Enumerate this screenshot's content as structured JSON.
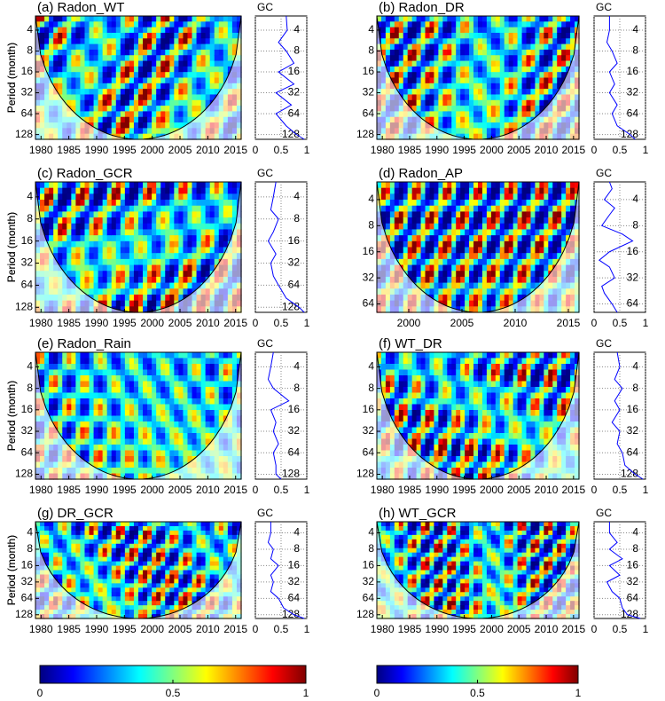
{
  "chart_data": [
    {
      "type": "wavelet",
      "title": "(a) Radon_WT",
      "ylabel": "Period (month)",
      "xlim": [
        1979,
        2016
      ],
      "xticks": [
        1980,
        1985,
        1990,
        1995,
        2000,
        2005,
        2010,
        2015
      ],
      "ylim": [
        2.5,
        150
      ],
      "yticks": [
        4,
        8,
        16,
        32,
        64,
        128
      ],
      "log_scale": true,
      "gc": {
        "title": "GC",
        "xlim": [
          0,
          1
        ],
        "xticks": [
          0,
          0.5,
          1
        ],
        "color": "#0000ff",
        "periods": [
          2.5,
          4,
          6,
          8,
          12,
          16,
          24,
          32,
          48,
          64,
          96,
          128,
          150
        ],
        "values": [
          0.6,
          0.62,
          0.45,
          0.6,
          0.75,
          0.45,
          0.75,
          0.4,
          0.7,
          0.4,
          0.6,
          0.8,
          0.95
        ]
      }
    },
    {
      "type": "wavelet",
      "title": "(b) Radon_DR",
      "ylabel": "Period (month)",
      "xlim": [
        1979,
        2016
      ],
      "xticks": [
        1980,
        1985,
        1990,
        1995,
        2000,
        2005,
        2010,
        2015
      ],
      "ylim": [
        2.5,
        150
      ],
      "yticks": [
        4,
        8,
        16,
        32,
        64,
        128
      ],
      "log_scale": true,
      "gc": {
        "title": "GC",
        "xlim": [
          0,
          1
        ],
        "xticks": [
          0,
          0.5,
          1
        ],
        "color": "#0000ff",
        "periods": [
          2.5,
          4,
          6,
          8,
          12,
          16,
          24,
          32,
          48,
          64,
          96,
          128,
          150
        ],
        "values": [
          0.3,
          0.3,
          0.25,
          0.35,
          0.45,
          0.3,
          0.4,
          0.3,
          0.45,
          0.35,
          0.45,
          0.7,
          0.8
        ]
      }
    },
    {
      "type": "wavelet",
      "title": "(c) Radon_GCR",
      "ylabel": "Period (month)",
      "xlim": [
        1979,
        2016
      ],
      "xticks": [
        1980,
        1985,
        1990,
        1995,
        2000,
        2005,
        2010,
        2015
      ],
      "ylim": [
        2.5,
        150
      ],
      "yticks": [
        4,
        8,
        16,
        32,
        64,
        128
      ],
      "log_scale": true,
      "gc": {
        "title": "GC",
        "xlim": [
          0,
          1
        ],
        "xticks": [
          0,
          0.5,
          1
        ],
        "color": "#0000ff",
        "periods": [
          2.5,
          4,
          6,
          8,
          12,
          16,
          24,
          32,
          48,
          64,
          96,
          128,
          150
        ],
        "values": [
          0.4,
          0.35,
          0.3,
          0.45,
          0.35,
          0.25,
          0.4,
          0.3,
          0.35,
          0.45,
          0.6,
          0.85,
          0.95
        ]
      }
    },
    {
      "type": "wavelet",
      "title": "(d) Radon_AP",
      "ylabel": "Period (month)",
      "xlim": [
        1997,
        2016
      ],
      "xticks": [
        2000,
        2005,
        2010,
        2015
      ],
      "ylim": [
        2.5,
        80
      ],
      "yticks": [
        4,
        8,
        16,
        32,
        64
      ],
      "log_scale": true,
      "gc": {
        "title": "GC",
        "xlim": [
          0,
          1
        ],
        "xticks": [
          0,
          0.5,
          1
        ],
        "color": "#0000ff",
        "periods": [
          2.5,
          3,
          4,
          5,
          6,
          8,
          10,
          12,
          16,
          20,
          24,
          32,
          40,
          48,
          64,
          80
        ],
        "values": [
          0.3,
          0.35,
          0.2,
          0.4,
          0.3,
          0.15,
          0.55,
          0.75,
          0.3,
          0.1,
          0.3,
          0.4,
          0.15,
          0.2,
          0.35,
          0.45
        ]
      }
    },
    {
      "type": "wavelet",
      "title": "(e) Radon_Rain",
      "ylabel": "Period (month)",
      "xlim": [
        1979,
        2016
      ],
      "xticks": [
        1980,
        1985,
        1990,
        1995,
        2000,
        2005,
        2010,
        2015
      ],
      "ylim": [
        2.5,
        150
      ],
      "yticks": [
        4,
        8,
        16,
        32,
        64,
        128
      ],
      "log_scale": true,
      "gc": {
        "title": "GC",
        "xlim": [
          0,
          1
        ],
        "xticks": [
          0,
          0.5,
          1
        ],
        "color": "#0000ff",
        "periods": [
          2.5,
          4,
          6,
          8,
          12,
          16,
          24,
          32,
          48,
          64,
          96,
          128,
          150
        ],
        "values": [
          0.35,
          0.3,
          0.25,
          0.35,
          0.65,
          0.3,
          0.4,
          0.35,
          0.45,
          0.35,
          0.4,
          0.4,
          0.5
        ]
      }
    },
    {
      "type": "wavelet",
      "title": "(f) WT_DR",
      "ylabel": "Period (month)",
      "xlim": [
        1979,
        2016
      ],
      "xticks": [
        1980,
        1985,
        1990,
        1995,
        2000,
        2005,
        2010,
        2015
      ],
      "ylim": [
        2.5,
        150
      ],
      "yticks": [
        4,
        8,
        16,
        32,
        64,
        128
      ],
      "log_scale": true,
      "gc": {
        "title": "GC",
        "xlim": [
          0,
          1
        ],
        "xticks": [
          0,
          0.5,
          1
        ],
        "color": "#0000ff",
        "periods": [
          2.5,
          4,
          6,
          8,
          12,
          16,
          24,
          32,
          48,
          64,
          96,
          128,
          150
        ],
        "values": [
          0.45,
          0.5,
          0.4,
          0.55,
          0.4,
          0.5,
          0.35,
          0.5,
          0.45,
          0.55,
          0.6,
          0.8,
          0.95
        ]
      }
    },
    {
      "type": "wavelet",
      "title": "(g) DR_GCR",
      "ylabel": "Period (month)",
      "xlim": [
        1979,
        2016
      ],
      "xticks": [
        1980,
        1985,
        1990,
        1995,
        2000,
        2005,
        2010,
        2015
      ],
      "ylim": [
        2.5,
        150
      ],
      "yticks": [
        4,
        8,
        16,
        32,
        64,
        128
      ],
      "log_scale": true,
      "gc": {
        "title": "GC",
        "xlim": [
          0,
          1
        ],
        "xticks": [
          0,
          0.5,
          1
        ],
        "color": "#0000ff",
        "periods": [
          2.5,
          4,
          6,
          8,
          12,
          16,
          24,
          32,
          48,
          64,
          96,
          128,
          150
        ],
        "values": [
          0.3,
          0.3,
          0.25,
          0.35,
          0.3,
          0.45,
          0.3,
          0.35,
          0.3,
          0.45,
          0.55,
          0.75,
          0.95
        ]
      }
    },
    {
      "type": "wavelet",
      "title": "(h) WT_GCR",
      "ylabel": "Period (month)",
      "xlim": [
        1979,
        2016
      ],
      "xticks": [
        1980,
        1985,
        1990,
        1995,
        2000,
        2005,
        2010,
        2015
      ],
      "ylim": [
        2.5,
        150
      ],
      "yticks": [
        4,
        8,
        16,
        32,
        64,
        128
      ],
      "log_scale": true,
      "gc": {
        "title": "GC",
        "xlim": [
          0,
          1
        ],
        "xticks": [
          0,
          0.5,
          1
        ],
        "color": "#0000ff",
        "periods": [
          2.5,
          4,
          6,
          8,
          12,
          16,
          24,
          32,
          48,
          64,
          96,
          128,
          150
        ],
        "values": [
          0.3,
          0.3,
          0.45,
          0.3,
          0.55,
          0.3,
          0.5,
          0.25,
          0.35,
          0.5,
          0.55,
          0.65,
          0.9
        ]
      }
    },
    {
      "type": "colorbar",
      "lim": [
        0,
        1
      ],
      "ticks": [
        0,
        0.5,
        1
      ]
    },
    {
      "type": "colorbar",
      "lim": [
        0,
        1
      ],
      "ticks": [
        0,
        0.5,
        1
      ]
    }
  ]
}
